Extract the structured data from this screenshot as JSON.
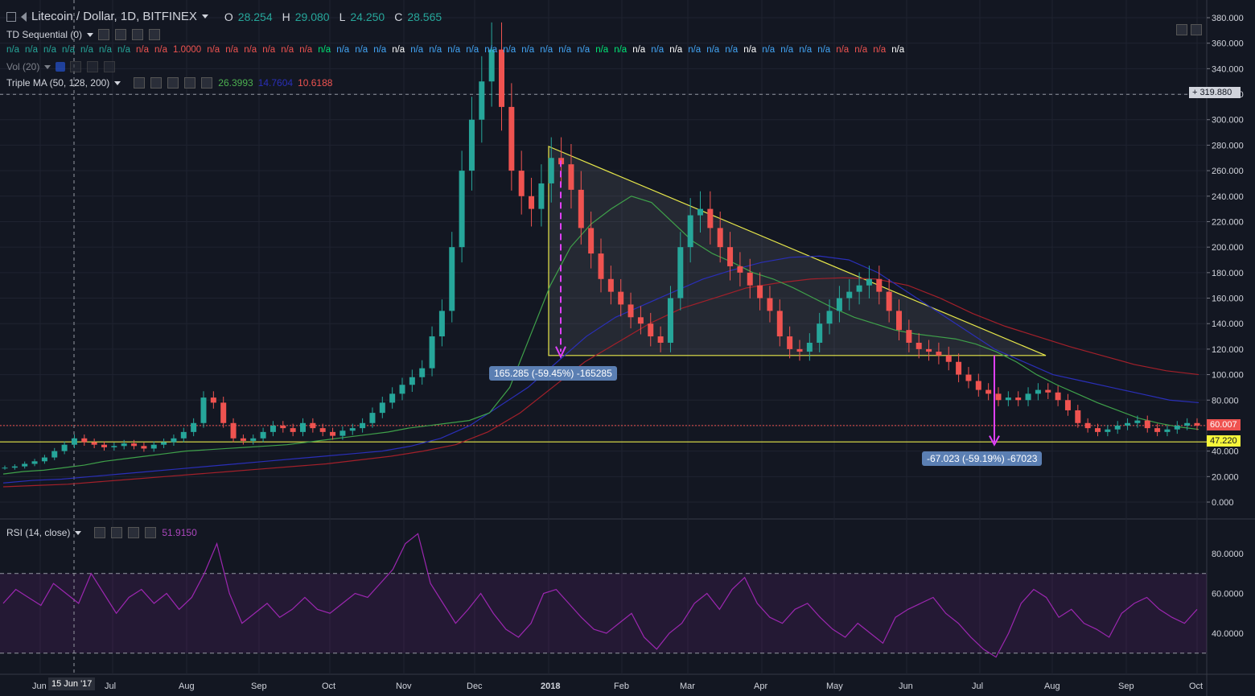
{
  "header": {
    "symbol": "Litecoin / Dollar, 1D, BITFINEX",
    "open_label": "O",
    "open": "28.254",
    "high_label": "H",
    "high": "29.080",
    "low_label": "L",
    "low": "24.250",
    "close_label": "C",
    "close": "28.565"
  },
  "indicators": {
    "td_sequential": "TD Sequential (0)",
    "volume": "Vol (20)",
    "triple_ma": "Triple MA (50, 128, 200)",
    "ma1_value": "26.3993",
    "ma2_value": "14.7604",
    "ma3_value": "10.6188",
    "rsi": "RSI (14, close)",
    "rsi_value": "51.9150"
  },
  "td_values": [
    {
      "t": "n/a",
      "c": "green"
    },
    {
      "t": "n/a",
      "c": "green"
    },
    {
      "t": "n/a",
      "c": "green"
    },
    {
      "t": "n/a",
      "c": "green"
    },
    {
      "t": "n/a",
      "c": "green"
    },
    {
      "t": "n/a",
      "c": "green"
    },
    {
      "t": "n/a",
      "c": "green"
    },
    {
      "t": "n/a",
      "c": "red"
    },
    {
      "t": "n/a",
      "c": "red"
    },
    {
      "t": "1.0000",
      "c": "red"
    },
    {
      "t": "n/a",
      "c": "red"
    },
    {
      "t": "n/a",
      "c": "red"
    },
    {
      "t": "n/a",
      "c": "red"
    },
    {
      "t": "n/a",
      "c": "red"
    },
    {
      "t": "n/a",
      "c": "red"
    },
    {
      "t": "n/a",
      "c": "red"
    },
    {
      "t": "n/a",
      "c": "lime"
    },
    {
      "t": "n/a",
      "c": "blue"
    },
    {
      "t": "n/a",
      "c": "blue"
    },
    {
      "t": "n/a",
      "c": "blue"
    },
    {
      "t": "n/a",
      "c": "white"
    },
    {
      "t": "n/a",
      "c": "blue"
    },
    {
      "t": "n/a",
      "c": "blue"
    },
    {
      "t": "n/a",
      "c": "blue"
    },
    {
      "t": "n/a",
      "c": "blue"
    },
    {
      "t": "n/a",
      "c": "blue"
    },
    {
      "t": "n/a",
      "c": "blue"
    },
    {
      "t": "n/a",
      "c": "blue"
    },
    {
      "t": "n/a",
      "c": "blue"
    },
    {
      "t": "n/a",
      "c": "blue"
    },
    {
      "t": "n/a",
      "c": "blue"
    },
    {
      "t": "n/a",
      "c": "lime"
    },
    {
      "t": "n/a",
      "c": "lime"
    },
    {
      "t": "n/a",
      "c": "white"
    },
    {
      "t": "n/a",
      "c": "blue"
    },
    {
      "t": "n/a",
      "c": "white"
    },
    {
      "t": "n/a",
      "c": "blue"
    },
    {
      "t": "n/a",
      "c": "blue"
    },
    {
      "t": "n/a",
      "c": "blue"
    },
    {
      "t": "n/a",
      "c": "white"
    },
    {
      "t": "n/a",
      "c": "blue"
    },
    {
      "t": "n/a",
      "c": "blue"
    },
    {
      "t": "n/a",
      "c": "blue"
    },
    {
      "t": "n/a",
      "c": "blue"
    },
    {
      "t": "n/a",
      "c": "red"
    },
    {
      "t": "n/a",
      "c": "red"
    },
    {
      "t": "n/a",
      "c": "red"
    },
    {
      "t": "n/a",
      "c": "white"
    }
  ],
  "price_axis": {
    "ticks": [
      "380.000",
      "360.000",
      "340.000",
      "320.000",
      "300.000",
      "280.000",
      "260.000",
      "240.000",
      "220.000",
      "200.000",
      "180.000",
      "160.000",
      "140.000",
      "120.000",
      "100.000",
      "80.000",
      "60.000",
      "40.000",
      "20.000",
      "0.000"
    ],
    "crosshair_price": "319.880",
    "last_price": "60.007",
    "support_price": "47.220"
  },
  "rsi_axis": {
    "ticks": [
      "80.0000",
      "60.0000",
      "40.0000"
    ]
  },
  "time_axis": {
    "labels": [
      "Jun",
      "Jul",
      "Aug",
      "Sep",
      "Oct",
      "Nov",
      "Dec",
      "2018",
      "Feb",
      "Mar",
      "Apr",
      "May",
      "Jun",
      "Jul",
      "Aug",
      "Sep",
      "Oct"
    ],
    "cursor_date": "15 Jun '17"
  },
  "annotations": {
    "measure1": "165.285 (-59.45%) -165285",
    "measure2": "-67.023 (-59.19%) -67023"
  },
  "colors": {
    "background": "#131722",
    "up_candle": "#26a69a",
    "down_candle": "#ef5350",
    "ma50": "#3fa14a",
    "ma128": "#2a2fb8",
    "ma200": "#a3202a",
    "triangle": "#e8e84a",
    "rsi_line": "#9c27b0",
    "measure_arrow": "#e040fb",
    "label_bg": "#5b7fb3"
  },
  "chart_data": {
    "type": "candlestick",
    "xlabel": "",
    "ylabel": "",
    "ylim": [
      0,
      380
    ],
    "close_series": [
      27,
      28,
      30,
      32,
      35,
      40,
      45,
      50,
      47,
      45,
      43,
      44,
      46,
      44,
      42,
      45,
      47,
      50,
      55,
      62,
      82,
      78,
      62,
      50,
      48,
      50,
      55,
      60,
      58,
      55,
      62,
      58,
      55,
      52,
      56,
      58,
      62,
      70,
      78,
      85,
      92,
      98,
      105,
      130,
      150,
      200,
      260,
      300,
      330,
      355,
      310,
      260,
      240,
      230,
      250,
      270,
      265,
      245,
      215,
      195,
      175,
      165,
      155,
      145,
      140,
      130,
      125,
      160,
      200,
      225,
      230,
      215,
      200,
      185,
      180,
      170,
      160,
      150,
      130,
      120,
      118,
      125,
      140,
      150,
      160,
      165,
      170,
      175,
      165,
      150,
      135,
      125,
      120,
      118,
      115,
      110,
      100,
      95,
      88,
      85,
      80,
      82,
      80,
      85,
      88,
      86,
      80,
      72,
      62,
      58,
      55,
      57,
      60,
      62,
      64,
      58,
      55,
      57,
      60,
      62,
      60
    ],
    "ma50": [
      22,
      24,
      25,
      27,
      29,
      32,
      34,
      36,
      38,
      40,
      41,
      42,
      43,
      44,
      45,
      47,
      49,
      51,
      53,
      55,
      58,
      60,
      62,
      64,
      70,
      90,
      130,
      170,
      200,
      218,
      230,
      240,
      235,
      220,
      205,
      195,
      188,
      180,
      175,
      168,
      160,
      152,
      145,
      140,
      135,
      132,
      130,
      128,
      124,
      118,
      110,
      100,
      92,
      85,
      78,
      72,
      66,
      62,
      59,
      57
    ],
    "ma128": [
      15,
      17,
      18,
      20,
      22,
      24,
      26,
      28,
      30,
      32,
      34,
      36,
      38,
      40,
      44,
      50,
      60,
      75,
      90,
      110,
      130,
      145,
      155,
      165,
      175,
      182,
      188,
      192,
      193,
      190,
      180,
      165,
      150,
      135,
      120,
      110,
      100,
      95,
      90,
      85,
      80,
      78
    ],
    "ma200": [
      12,
      13,
      14,
      16,
      18,
      20,
      22,
      24,
      26,
      28,
      30,
      33,
      36,
      40,
      45,
      55,
      70,
      90,
      110,
      125,
      140,
      152,
      160,
      168,
      172,
      175,
      176,
      175,
      170,
      160,
      148,
      138,
      130,
      122,
      115,
      108,
      103,
      100
    ],
    "rsi": [
      55,
      62,
      58,
      54,
      65,
      60,
      55,
      70,
      60,
      50,
      58,
      62,
      55,
      60,
      52,
      58,
      70,
      85,
      60,
      45,
      50,
      55,
      48,
      52,
      58,
      52,
      50,
      55,
      60,
      58,
      65,
      72,
      85,
      90,
      65,
      55,
      45,
      52,
      60,
      50,
      42,
      38,
      45,
      60,
      62,
      55,
      48,
      42,
      40,
      45,
      50,
      38,
      32,
      40,
      45,
      55,
      60,
      52,
      62,
      68,
      55,
      48,
      45,
      52,
      55,
      48,
      42,
      38,
      45,
      40,
      35,
      48,
      52,
      55,
      58,
      50,
      45,
      38,
      32,
      28,
      40,
      55,
      62,
      58,
      48,
      52,
      45,
      42,
      38,
      50,
      55,
      58,
      52,
      48,
      45,
      52
    ]
  }
}
